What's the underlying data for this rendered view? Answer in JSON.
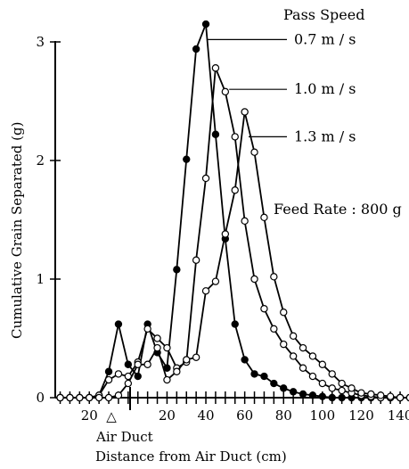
{
  "chart_data": {
    "type": "line",
    "header": "Pass Speed",
    "annotation": "Feed Rate : 800 g",
    "ylabel": "Cumulative Grain Separated  (g)",
    "xlabel": "Distance from Air Duct  (cm)",
    "duct_label": "Air Duct",
    "duct_marker": "△",
    "ylim": [
      0,
      3
    ],
    "y_ticks": [
      "0",
      "1",
      "2",
      "3"
    ],
    "x_tick_labels": [
      {
        "label": "20",
        "x": -20
      },
      {
        "label": "20",
        "x": 20
      },
      {
        "label": "40",
        "x": 40
      },
      {
        "label": "60",
        "x": 60
      },
      {
        "label": "80",
        "x": 80
      },
      {
        "label": "100",
        "x": 100
      },
      {
        "label": "120",
        "x": 120
      },
      {
        "label": "140",
        "x": 140
      }
    ],
    "x_range": [
      -38,
      146
    ],
    "series": [
      {
        "name": "0.7 m / s",
        "marker": "dark",
        "label_at": {
          "x": 41,
          "y": 3.02
        },
        "points": [
          [
            -35,
            0
          ],
          [
            -30,
            0
          ],
          [
            -25,
            0
          ],
          [
            -20,
            0
          ],
          [
            -15,
            0.02
          ],
          [
            -10,
            0.22
          ],
          [
            -5,
            0.62
          ],
          [
            0,
            0.28
          ],
          [
            5,
            0.18
          ],
          [
            10,
            0.62
          ],
          [
            15,
            0.38
          ],
          [
            20,
            0.25
          ],
          [
            25,
            1.08
          ],
          [
            30,
            2.01
          ],
          [
            35,
            2.94
          ],
          [
            40,
            3.15
          ],
          [
            45,
            2.22
          ],
          [
            50,
            1.34
          ],
          [
            55,
            0.62
          ],
          [
            60,
            0.32
          ],
          [
            65,
            0.2
          ],
          [
            70,
            0.18
          ],
          [
            75,
            0.12
          ],
          [
            80,
            0.08
          ],
          [
            85,
            0.05
          ],
          [
            90,
            0.03
          ],
          [
            95,
            0.02
          ],
          [
            100,
            0.01
          ],
          [
            105,
            0
          ],
          [
            110,
            0
          ],
          [
            115,
            0
          ],
          [
            120,
            0
          ],
          [
            125,
            0
          ],
          [
            130,
            0
          ],
          [
            135,
            0
          ],
          [
            140,
            0
          ],
          [
            145,
            0
          ]
        ]
      },
      {
        "name": "1.0 m / s",
        "marker": "light",
        "label_at": {
          "x": 52,
          "y": 2.6
        },
        "points": [
          [
            -35,
            0
          ],
          [
            -30,
            0
          ],
          [
            -25,
            0
          ],
          [
            -20,
            0
          ],
          [
            -15,
            0.02
          ],
          [
            -10,
            0.15
          ],
          [
            -5,
            0.2
          ],
          [
            0,
            0.18
          ],
          [
            5,
            0.3
          ],
          [
            10,
            0.58
          ],
          [
            15,
            0.5
          ],
          [
            20,
            0.42
          ],
          [
            25,
            0.25
          ],
          [
            30,
            0.3
          ],
          [
            35,
            1.16
          ],
          [
            40,
            1.85
          ],
          [
            45,
            2.78
          ],
          [
            50,
            2.58
          ],
          [
            55,
            2.2
          ],
          [
            60,
            1.49
          ],
          [
            65,
            1.0
          ],
          [
            70,
            0.75
          ],
          [
            75,
            0.58
          ],
          [
            80,
            0.45
          ],
          [
            85,
            0.35
          ],
          [
            90,
            0.25
          ],
          [
            95,
            0.18
          ],
          [
            100,
            0.12
          ],
          [
            105,
            0.08
          ],
          [
            110,
            0.06
          ],
          [
            115,
            0.04
          ],
          [
            120,
            0.02
          ],
          [
            125,
            0.01
          ],
          [
            130,
            0
          ],
          [
            135,
            0
          ],
          [
            140,
            0
          ],
          [
            145,
            0
          ]
        ]
      },
      {
        "name": "1.3 m / s",
        "marker": "light",
        "label_at": {
          "x": 62,
          "y": 2.2
        },
        "points": [
          [
            -35,
            0
          ],
          [
            -30,
            0
          ],
          [
            -25,
            0
          ],
          [
            -20,
            0
          ],
          [
            -15,
            0
          ],
          [
            -10,
            0
          ],
          [
            -5,
            0.02
          ],
          [
            0,
            0.12
          ],
          [
            5,
            0.28
          ],
          [
            10,
            0.28
          ],
          [
            15,
            0.42
          ],
          [
            20,
            0.15
          ],
          [
            25,
            0.22
          ],
          [
            30,
            0.32
          ],
          [
            35,
            0.34
          ],
          [
            40,
            0.9
          ],
          [
            45,
            0.98
          ],
          [
            50,
            1.38
          ],
          [
            55,
            1.75
          ],
          [
            60,
            2.41
          ],
          [
            65,
            2.07
          ],
          [
            70,
            1.52
          ],
          [
            75,
            1.02
          ],
          [
            80,
            0.72
          ],
          [
            85,
            0.52
          ],
          [
            90,
            0.42
          ],
          [
            95,
            0.35
          ],
          [
            100,
            0.28
          ],
          [
            105,
            0.2
          ],
          [
            110,
            0.12
          ],
          [
            115,
            0.08
          ],
          [
            120,
            0.04
          ],
          [
            125,
            0.03
          ],
          [
            130,
            0.02
          ],
          [
            135,
            0.01
          ],
          [
            140,
            0
          ],
          [
            145,
            0
          ]
        ]
      }
    ]
  }
}
